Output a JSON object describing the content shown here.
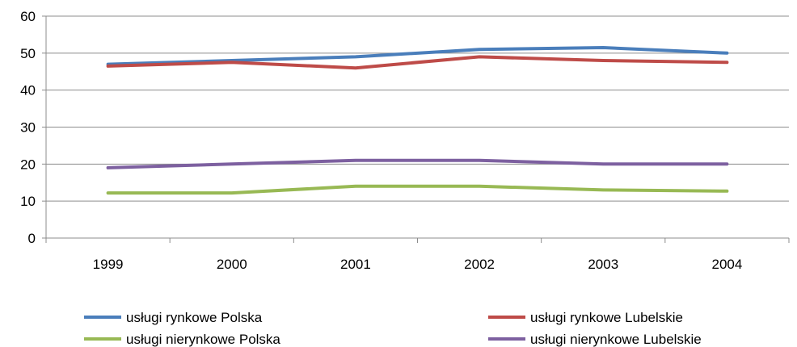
{
  "chart_data": {
    "type": "line",
    "title": "",
    "xlabel": "",
    "ylabel": "",
    "categories": [
      "1999",
      "2000",
      "2001",
      "2002",
      "2003",
      "2004"
    ],
    "ylim": [
      0,
      60
    ],
    "yticks": [
      0,
      10,
      20,
      30,
      40,
      50,
      60
    ],
    "grid": true,
    "legend_position": "bottom",
    "series": [
      {
        "name": "usługi rynkowe Polska",
        "color": "#4A7EBB",
        "values": [
          47,
          48,
          49,
          51,
          51.5,
          50
        ]
      },
      {
        "name": "usługi rynkowe Lubelskie",
        "color": "#BE4B48",
        "values": [
          46.5,
          47.5,
          46,
          49,
          48,
          47.5
        ]
      },
      {
        "name": "usługi nierynkowe Polska",
        "color": "#98B954",
        "values": [
          12.2,
          12.2,
          14,
          14,
          13,
          12.7
        ]
      },
      {
        "name": "usługi nierynkowe Lubelskie",
        "color": "#7D60A0",
        "values": [
          19,
          20,
          21,
          21,
          20,
          20
        ]
      }
    ]
  }
}
